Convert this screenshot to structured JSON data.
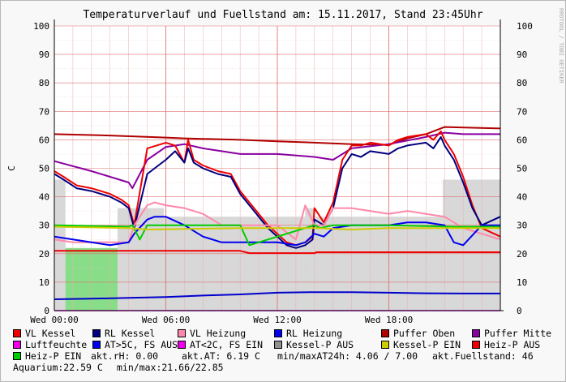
{
  "chart_data": {
    "type": "line",
    "title": "Temperaturverlauf und Fuellstand am: 15.11.2017, Stand 23:45Uhr",
    "watermark": "RRDTOOL / TOBI OETIKER",
    "ylabel": "C",
    "ylim": [
      0,
      100
    ],
    "xlim": [
      0,
      24
    ],
    "y_ticks": [
      0,
      10,
      20,
      30,
      40,
      50,
      60,
      70,
      80,
      90,
      100
    ],
    "x_ticks": [
      {
        "x": 0,
        "label": "Wed 00:00"
      },
      {
        "x": 6,
        "label": "Wed 06:00"
      },
      {
        "x": 12,
        "label": "Wed 12:00"
      },
      {
        "x": 18,
        "label": "Wed 18:00"
      }
    ],
    "grid": true,
    "fills": [
      {
        "name": "Heiz-P EIN",
        "color": "#88dd88",
        "level": 22,
        "intervals": [
          [
            0,
            5.4
          ],
          [
            10.5,
            14.2
          ],
          [
            14.4,
            14.6
          ],
          [
            14.9,
            15.1
          ],
          [
            21.5,
            23.7
          ]
        ]
      },
      {
        "name": "AT>5C, FS AUS",
        "color": "#99e0e8",
        "level": 22,
        "intervals": [
          [
            5.4,
            10.5
          ],
          [
            14.2,
            14.4
          ],
          [
            14.6,
            14.9
          ],
          [
            15.1,
            21.5
          ]
        ]
      },
      {
        "name": "Kessel-P AUS",
        "color": "#d8d8d8",
        "level": 46,
        "intervals": [
          [
            0,
            0.6
          ],
          [
            20.9,
            24
          ]
        ]
      },
      {
        "name": "Kessel-P AUS",
        "color": "#d8d8d8",
        "level": 36,
        "intervals": [
          [
            3.4,
            5.9
          ],
          [
            13.5,
            14
          ]
        ]
      },
      {
        "name": "Kessel-P AUS",
        "color": "#d8d8d8",
        "level": 33,
        "intervals": [
          [
            5.9,
            13.5
          ],
          [
            14,
            20.9
          ]
        ]
      }
    ],
    "series": [
      {
        "name": "Puffer Oben",
        "color": "#b00000",
        "x": [
          0,
          3,
          6,
          7,
          10,
          12,
          14,
          16,
          18,
          19,
          20,
          21,
          24
        ],
        "y": [
          62,
          61.5,
          60.8,
          60.5,
          60,
          59.5,
          59,
          58.5,
          58.2,
          60.5,
          62,
          64.5,
          64
        ]
      },
      {
        "name": "Puffer Mitte",
        "color": "#8800a0",
        "x": [
          0,
          2,
          4,
          4.2,
          5,
          6,
          7,
          8,
          9,
          10,
          12,
          14,
          15,
          16,
          18,
          20,
          21,
          22,
          24
        ],
        "y": [
          52.5,
          49,
          45,
          43,
          53,
          57.5,
          58.5,
          57,
          56,
          55,
          55,
          54,
          53,
          57,
          58.5,
          61,
          62.5,
          62,
          62
        ]
      },
      {
        "name": "VL Kessel",
        "color": "#ee0000",
        "x": [
          0,
          0.5,
          1.2,
          2,
          3,
          3.6,
          4,
          4.3,
          5,
          6,
          6.5,
          7,
          7.2,
          7.5,
          8,
          8.8,
          9.5,
          10,
          10.5,
          11,
          11.5,
          12,
          12.5,
          13,
          13.5,
          13.9,
          14,
          14.5,
          15,
          15.5,
          16,
          16.5,
          17,
          18,
          18.5,
          19,
          20,
          20.4,
          20.8,
          21,
          21.5,
          22,
          22.5,
          23,
          24
        ],
        "y": [
          49,
          47,
          44,
          43,
          41,
          39,
          37,
          30,
          57,
          59,
          58,
          52,
          60,
          53,
          51,
          49,
          48,
          42,
          38,
          34,
          30,
          27,
          24,
          23,
          24,
          26,
          36,
          31,
          38,
          53,
          58,
          58,
          59,
          58,
          60,
          61,
          62,
          60,
          63,
          60,
          55,
          47,
          37,
          29,
          26
        ]
      },
      {
        "name": "RL Kessel",
        "color": "#000080",
        "x": [
          0,
          0.5,
          1.2,
          2,
          3,
          3.6,
          4,
          4.3,
          5,
          6,
          6.5,
          7,
          7.2,
          7.5,
          8,
          8.8,
          9.5,
          10,
          10.5,
          11,
          11.5,
          12,
          12.5,
          13,
          13.5,
          13.9,
          14,
          14.5,
          15,
          15.5,
          16,
          16.5,
          17,
          18,
          18.5,
          19,
          20,
          20.4,
          20.8,
          21,
          21.5,
          22,
          22.5,
          23,
          24
        ],
        "y": [
          48,
          46,
          43,
          42,
          40,
          38,
          36,
          29,
          48,
          53,
          56,
          52,
          57,
          52,
          50,
          48,
          47,
          41,
          37,
          33,
          29,
          26,
          23,
          22,
          23,
          25,
          32,
          30,
          36,
          50,
          55,
          54,
          56,
          55,
          57,
          58,
          59,
          57,
          61,
          58,
          53,
          45,
          36,
          30,
          33
        ]
      },
      {
        "name": "VL Heizung",
        "color": "#ff88aa",
        "x": [
          0,
          1,
          2,
          3,
          4,
          4.3,
          5,
          5.4,
          6,
          7,
          8,
          9,
          10,
          11,
          12,
          13,
          13.5,
          14,
          14.5,
          15,
          16,
          17,
          18,
          19,
          20,
          21,
          21.5,
          22,
          23,
          24
        ],
        "y": [
          25,
          24,
          24,
          24,
          24,
          30,
          37,
          38,
          37,
          36,
          34,
          30,
          30,
          30,
          30,
          25,
          37,
          30,
          30,
          36,
          36,
          35,
          34,
          35,
          34,
          33,
          31,
          29,
          27,
          25
        ]
      },
      {
        "name": "RL Heizung",
        "color": "#0000ee",
        "x": [
          0,
          1,
          2,
          3,
          4,
          4.3,
          5,
          5.4,
          6,
          7,
          8,
          9,
          10,
          11,
          12,
          13,
          13.5,
          14,
          14.5,
          15,
          16,
          17,
          18,
          19,
          20,
          21,
          21.5,
          22,
          23,
          24
        ],
        "y": [
          26,
          25,
          24,
          23,
          24,
          27,
          32,
          33,
          33,
          30,
          26,
          24,
          24,
          24,
          24,
          23,
          24,
          27,
          26,
          29,
          30,
          30,
          30,
          31,
          31,
          30,
          24,
          23,
          30,
          30
        ]
      },
      {
        "name": "Heiz-P EIN",
        "color": "#00cc00",
        "x": [
          0,
          4,
          4.2,
          4.6,
          5,
          10,
          10.5,
          14,
          14.3,
          15,
          18,
          21.5,
          24
        ],
        "y": [
          30,
          29.5,
          30,
          25,
          30,
          30,
          23,
          30,
          29,
          30,
          30,
          29.5,
          29.5
        ]
      },
      {
        "name": "Kessel-P EIN",
        "color": "#cccc00",
        "x": [
          0,
          4,
          5,
          10,
          14,
          16,
          18,
          21.5,
          24
        ],
        "y": [
          29.5,
          29,
          28.5,
          29,
          29,
          28.5,
          29,
          29,
          29
        ]
      },
      {
        "name": "Heiz-P AUS",
        "color": "#ee0000",
        "x": [
          0,
          10,
          10.5,
          14,
          14.1,
          21.5,
          21.7,
          24
        ],
        "y": [
          21,
          21,
          20.2,
          20.2,
          20.5,
          20.5,
          20.5,
          20.5
        ]
      },
      {
        "name": "Fuellstand",
        "color": "#0000cc",
        "x": [
          0,
          2,
          4,
          6,
          8,
          10,
          12,
          14,
          16,
          18,
          20,
          22,
          24
        ],
        "y": [
          4,
          4.2,
          4.5,
          4.8,
          5.3,
          5.7,
          6.3,
          6.5,
          6.5,
          6.3,
          6.1,
          6.0,
          6.0
        ]
      },
      {
        "name": "Luftfeuchte",
        "color": "#ee00ee",
        "x": [
          0,
          24
        ],
        "y": [
          0,
          0
        ]
      }
    ]
  },
  "legend": [
    {
      "label": "VL Kessel",
      "color": "#ee0000"
    },
    {
      "label": "RL Kessel",
      "color": "#000080"
    },
    {
      "label": "VL Heizung",
      "color": "#ff88aa"
    },
    {
      "label": "RL Heizung",
      "color": "#0000ee"
    },
    {
      "label": "Puffer Oben",
      "color": "#b00000"
    },
    {
      "label": "Puffer Mitte",
      "color": "#8800a0"
    },
    {
      "label": "Luftfeuchte",
      "color": "#ee00ee"
    },
    {
      "label": "AT>5C, FS AUS",
      "color": "#0000ee"
    },
    {
      "label": "AT<2C, FS EIN",
      "color": "#ee00ee"
    },
    {
      "label": "Kessel-P AUS",
      "color": "#909090"
    },
    {
      "label": "Kessel-P EIN",
      "color": "#cccc00"
    },
    {
      "label": "Heiz-P AUS",
      "color": "#ee0000"
    },
    {
      "label": "Heiz-P EIN",
      "color": "#00cc00"
    }
  ],
  "info": {
    "rh": "akt.rH: 0.00",
    "at": "akt.AT: 6.19 C",
    "minmax": "min/maxAT24h: 4.06 / 7.00",
    "fuellstand": "akt.Fuellstand:   46",
    "aquarium": "Aquarium:22.59 C",
    "aq_minmax": "min/max:21.66/22.85"
  }
}
